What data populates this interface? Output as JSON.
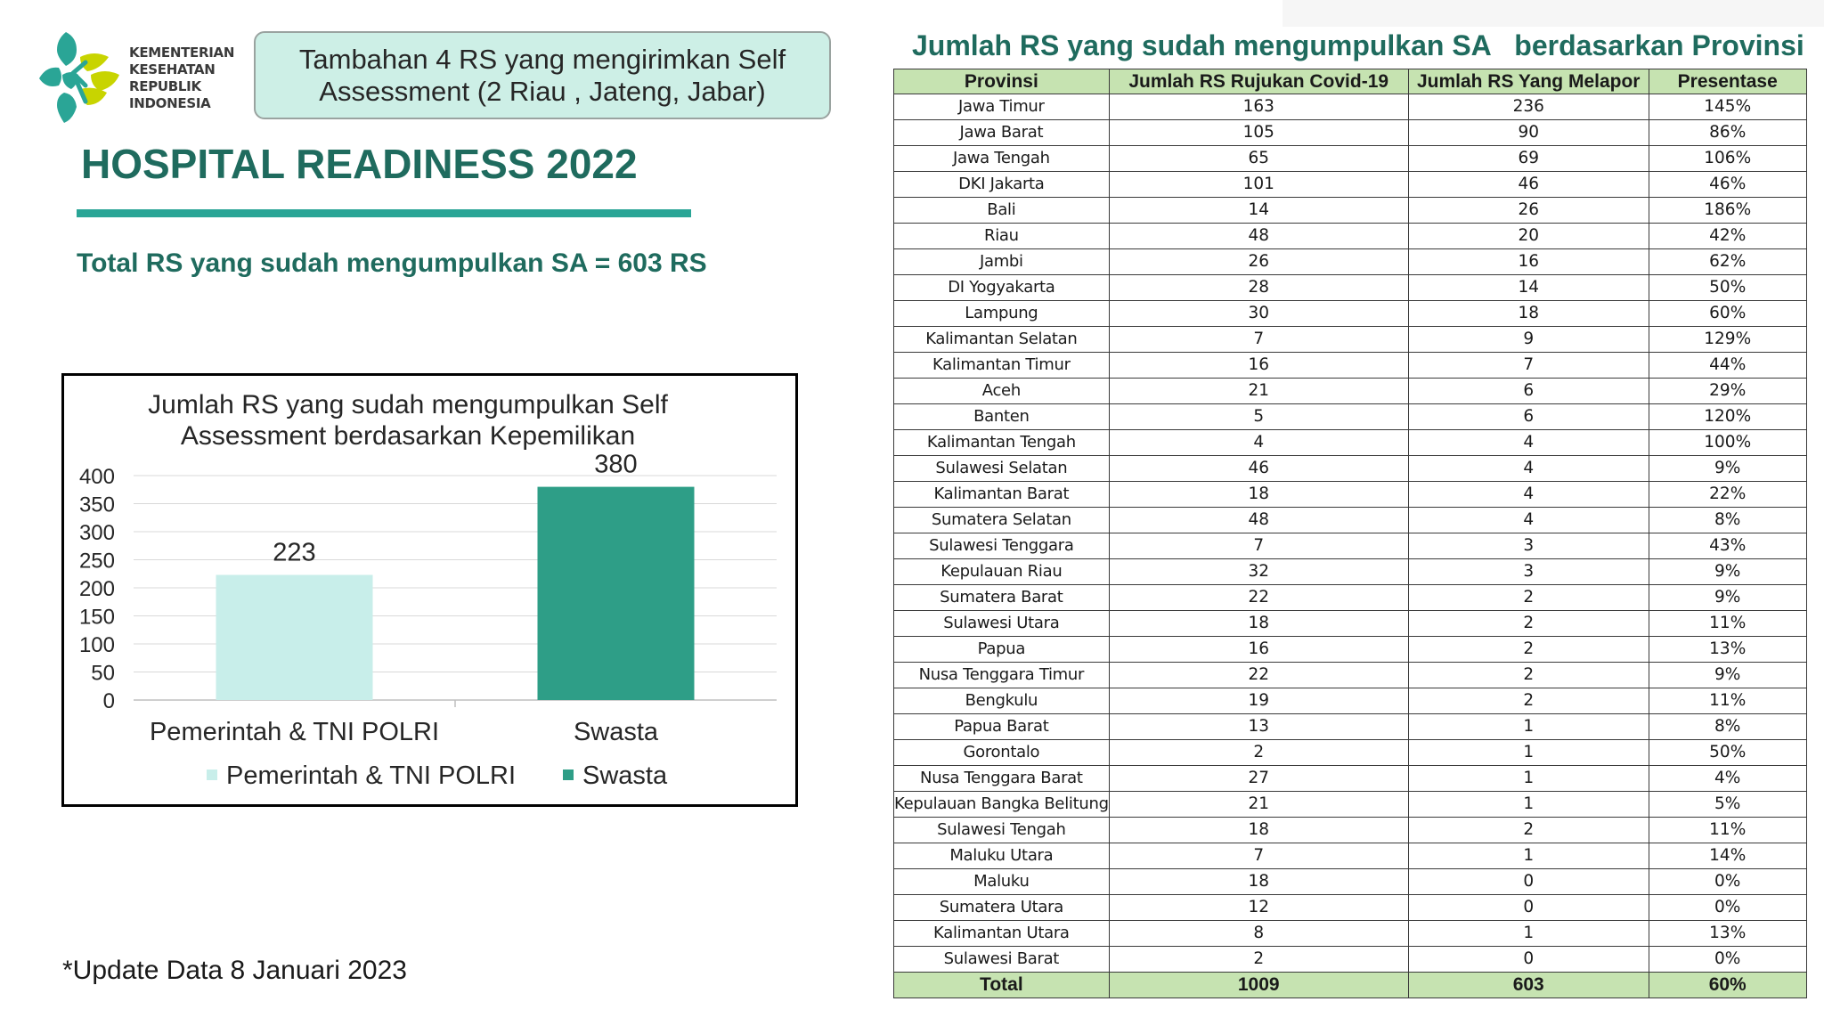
{
  "logo": {
    "lines": [
      "KEMENTERIAN",
      "KESEHATAN",
      "REPUBLIK",
      "INDONESIA"
    ],
    "colors": {
      "teal": "#2aa596",
      "lime": "#c8d400"
    }
  },
  "callout": {
    "line1": "Tambahan 4 RS yang mengirimkan Self",
    "line2": "Assessment (2 Riau , Jateng, Jabar)"
  },
  "header": {
    "title": "HOSPITAL READINESS 2022",
    "total_text": "Total RS yang sudah mengumpulkan SA = 603 RS"
  },
  "footnote": "*Update Data 8 Januari 2023",
  "colors": {
    "accent": "#2aa596",
    "heading": "#1f6b5e",
    "table_header": "#c6e3b1",
    "callout_bg": "#cdefe6"
  },
  "chart_data": {
    "type": "bar",
    "title_lines": [
      "Jumlah RS yang sudah mengumpulkan Self",
      "Assessment berdasarkan Kepemilikan"
    ],
    "categories": [
      "Pemerintah & TNI POLRI",
      "Swasta"
    ],
    "values": [
      223,
      380
    ],
    "bar_colors": [
      "#c8eeea",
      "#2e9e87"
    ],
    "data_labels": [
      "223",
      "380"
    ],
    "ylim": [
      0,
      400
    ],
    "yticks": [
      0,
      50,
      100,
      150,
      200,
      250,
      300,
      350,
      400
    ],
    "grid": true,
    "legend_position": "bottom",
    "legend": [
      "Pemerintah & TNI POLRI",
      "Swasta"
    ]
  },
  "table": {
    "title": "Jumlah RS yang sudah mengumpulkan SA   berdasarkan Provinsi",
    "headers": [
      "Provinsi",
      "Jumlah RS Rujukan Covid-19",
      "Jumlah RS Yang Melapor",
      "Presentase"
    ],
    "rows": [
      [
        "Jawa Timur",
        "163",
        "236",
        "145%"
      ],
      [
        "Jawa Barat",
        "105",
        "90",
        "86%"
      ],
      [
        "Jawa Tengah",
        "65",
        "69",
        "106%"
      ],
      [
        "DKI Jakarta",
        "101",
        "46",
        "46%"
      ],
      [
        "Bali",
        "14",
        "26",
        "186%"
      ],
      [
        "Riau",
        "48",
        "20",
        "42%"
      ],
      [
        "Jambi",
        "26",
        "16",
        "62%"
      ],
      [
        "DI Yogyakarta",
        "28",
        "14",
        "50%"
      ],
      [
        "Lampung",
        "30",
        "18",
        "60%"
      ],
      [
        "Kalimantan Selatan",
        "7",
        "9",
        "129%"
      ],
      [
        "Kalimantan Timur",
        "16",
        "7",
        "44%"
      ],
      [
        "Aceh",
        "21",
        "6",
        "29%"
      ],
      [
        "Banten",
        "5",
        "6",
        "120%"
      ],
      [
        "Kalimantan Tengah",
        "4",
        "4",
        "100%"
      ],
      [
        "Sulawesi Selatan",
        "46",
        "4",
        "9%"
      ],
      [
        "Kalimantan Barat",
        "18",
        "4",
        "22%"
      ],
      [
        "Sumatera Selatan",
        "48",
        "4",
        "8%"
      ],
      [
        "Sulawesi Tenggara",
        "7",
        "3",
        "43%"
      ],
      [
        "Kepulauan Riau",
        "32",
        "3",
        "9%"
      ],
      [
        "Sumatera Barat",
        "22",
        "2",
        "9%"
      ],
      [
        "Sulawesi Utara",
        "18",
        "2",
        "11%"
      ],
      [
        "Papua",
        "16",
        "2",
        "13%"
      ],
      [
        "Nusa Tenggara Timur",
        "22",
        "2",
        "9%"
      ],
      [
        "Bengkulu",
        "19",
        "2",
        "11%"
      ],
      [
        "Papua Barat",
        "13",
        "1",
        "8%"
      ],
      [
        "Gorontalo",
        "2",
        "1",
        "50%"
      ],
      [
        "Nusa Tenggara Barat",
        "27",
        "1",
        "4%"
      ],
      [
        "Kepulauan Bangka Belitung",
        "21",
        "1",
        "5%"
      ],
      [
        "Sulawesi Tengah",
        "18",
        "2",
        "11%"
      ],
      [
        "Maluku Utara",
        "7",
        "1",
        "14%"
      ],
      [
        "Maluku",
        "18",
        "0",
        "0%"
      ],
      [
        "Sumatera Utara",
        "12",
        "0",
        "0%"
      ],
      [
        "Kalimantan Utara",
        "8",
        "1",
        "13%"
      ],
      [
        "Sulawesi Barat",
        "2",
        "0",
        "0%"
      ]
    ],
    "total": [
      "Total",
      "1009",
      "603",
      "60%"
    ]
  }
}
